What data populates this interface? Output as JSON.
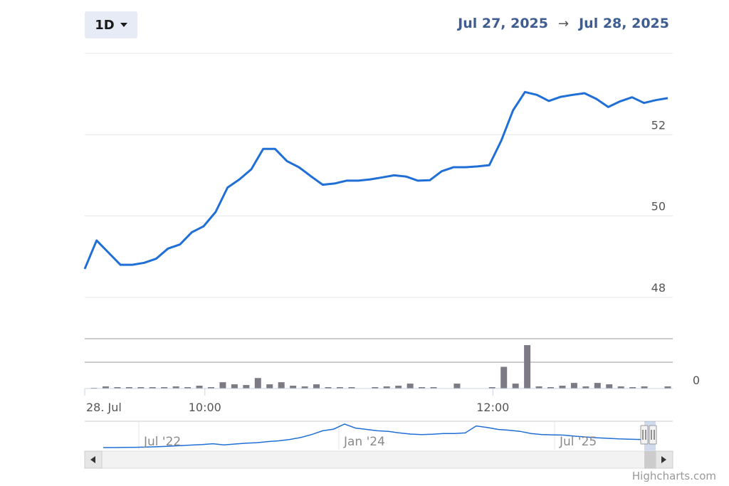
{
  "range_selector": {
    "selected": "1D"
  },
  "date_range": {
    "from": "Jul 27, 2025",
    "arrow": "→",
    "to": "Jul 28, 2025"
  },
  "credits": "Highcharts.com",
  "colors": {
    "line": "#1f6fd6",
    "volume": "#7d7a84",
    "grid": "#e6e6e6",
    "navigator_line": "#1f6fd6"
  },
  "chart_data": {
    "type": "line",
    "price": {
      "y_ticks": [
        "52",
        "50",
        "48"
      ],
      "y_values": [
        52,
        50,
        48
      ],
      "ylim": [
        47.0,
        54.0
      ],
      "points": [
        [
          0,
          48.7
        ],
        [
          1,
          49.4
        ],
        [
          2,
          49.1
        ],
        [
          3,
          48.8
        ],
        [
          4,
          48.8
        ],
        [
          5,
          48.85
        ],
        [
          6,
          48.95
        ],
        [
          7,
          49.2
        ],
        [
          8,
          49.3
        ],
        [
          9,
          49.6
        ],
        [
          10,
          49.75
        ],
        [
          11,
          50.1
        ],
        [
          12,
          50.7
        ],
        [
          13,
          50.9
        ],
        [
          14,
          51.15
        ],
        [
          15,
          51.65
        ],
        [
          16,
          51.65
        ],
        [
          17,
          51.35
        ],
        [
          18,
          51.2
        ],
        [
          19,
          50.98
        ],
        [
          20,
          50.77
        ],
        [
          21,
          50.8
        ],
        [
          22,
          50.87
        ],
        [
          23,
          50.87
        ],
        [
          24,
          50.9
        ],
        [
          25,
          50.95
        ],
        [
          26,
          51.0
        ],
        [
          27,
          50.97
        ],
        [
          28,
          50.87
        ],
        [
          29,
          50.88
        ],
        [
          30,
          51.1
        ],
        [
          31,
          51.2
        ],
        [
          32,
          51.2
        ],
        [
          33,
          51.22
        ],
        [
          34,
          51.25
        ],
        [
          35,
          51.85
        ],
        [
          36,
          52.6
        ],
        [
          37,
          53.05
        ],
        [
          38,
          52.98
        ],
        [
          39,
          52.83
        ],
        [
          40,
          52.93
        ],
        [
          41,
          52.98
        ],
        [
          42,
          53.02
        ],
        [
          43,
          52.88
        ],
        [
          44,
          52.68
        ],
        [
          45,
          52.82
        ],
        [
          46,
          52.92
        ],
        [
          47,
          52.78
        ],
        [
          48,
          52.85
        ],
        [
          49,
          52.9
        ]
      ]
    },
    "volume": {
      "y_ticks": [
        "0"
      ],
      "values": [
        0.5,
        1.5,
        1,
        1,
        1,
        1,
        1,
        1.5,
        1,
        2,
        1,
        4.5,
        3,
        2.5,
        7.5,
        3,
        4.5,
        2,
        1.5,
        3,
        1,
        1,
        1,
        0,
        1,
        1.5,
        2,
        3.5,
        1,
        1,
        0,
        3.5,
        0,
        0,
        1,
        15.5,
        3.5,
        31,
        1.5,
        1,
        2,
        4,
        1.5,
        4,
        3,
        1.5,
        1,
        1.5,
        0,
        1.5
      ]
    },
    "x_ticks": [
      "28. Jul",
      "10:00",
      "12:00"
    ],
    "x_tick_index": [
      0,
      10.1,
      34.3
    ],
    "navigator": {
      "labels": [
        "Jul '22",
        "Jan '24",
        "Jul '25"
      ],
      "series": [
        0.08,
        0.08,
        0.085,
        0.09,
        0.1,
        0.11,
        0.13,
        0.15,
        0.17,
        0.19,
        0.22,
        0.18,
        0.21,
        0.24,
        0.26,
        0.3,
        0.33,
        0.38,
        0.45,
        0.56,
        0.7,
        0.76,
        0.95,
        0.8,
        0.75,
        0.7,
        0.68,
        0.62,
        0.58,
        0.56,
        0.57,
        0.6,
        0.6,
        0.62,
        0.88,
        0.82,
        0.75,
        0.72,
        0.68,
        0.6,
        0.56,
        0.55,
        0.54,
        0.5,
        0.47,
        0.44,
        0.42,
        0.4,
        0.39,
        0.38
      ]
    }
  }
}
